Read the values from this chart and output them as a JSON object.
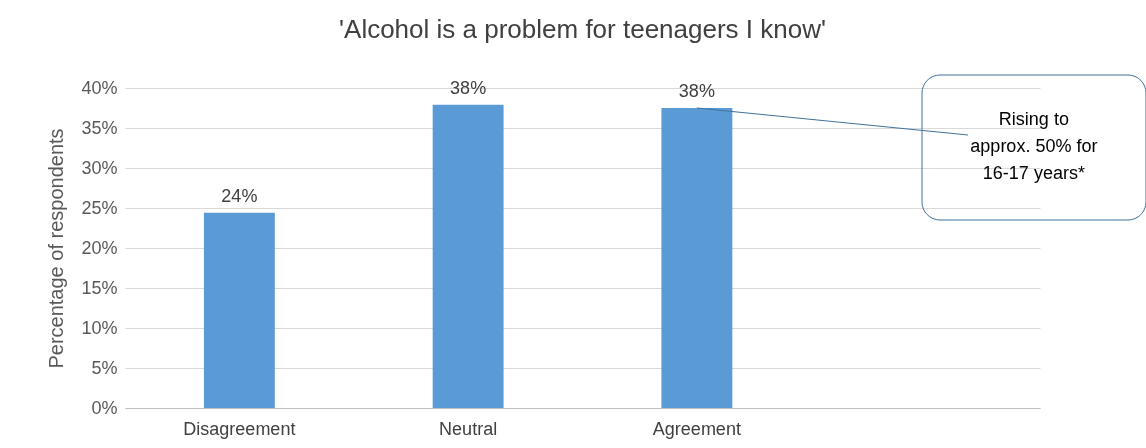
{
  "chart_data": {
    "type": "bar",
    "title": "'Alcohol is a problem for teenagers I know'",
    "ylabel": "Percentage of respondents",
    "categories": [
      "Disagreement",
      "Neutral",
      "Agreement",
      null
    ],
    "values": [
      24.4,
      37.9,
      37.5,
      null
    ],
    "value_labels": [
      "24%",
      "38%",
      "38%",
      null
    ],
    "color": "#5b9bd5",
    "ylim": [
      0,
      40
    ],
    "yticks": [
      {
        "value": 0,
        "label": "0%"
      },
      {
        "value": 5,
        "label": "5%"
      },
      {
        "value": 10,
        "label": "10%"
      },
      {
        "value": 15,
        "label": "15%"
      },
      {
        "value": 20,
        "label": "20%"
      },
      {
        "value": 25,
        "label": "25%"
      },
      {
        "value": 30,
        "label": "30%"
      },
      {
        "value": 35,
        "label": "35%"
      },
      {
        "value": 40,
        "label": "40%"
      }
    ],
    "grid": "y",
    "annotations": [
      {
        "text": "Rising to approx. 50% for 16-17 years*",
        "x": "Agreement",
        "y": 37.5
      }
    ]
  }
}
